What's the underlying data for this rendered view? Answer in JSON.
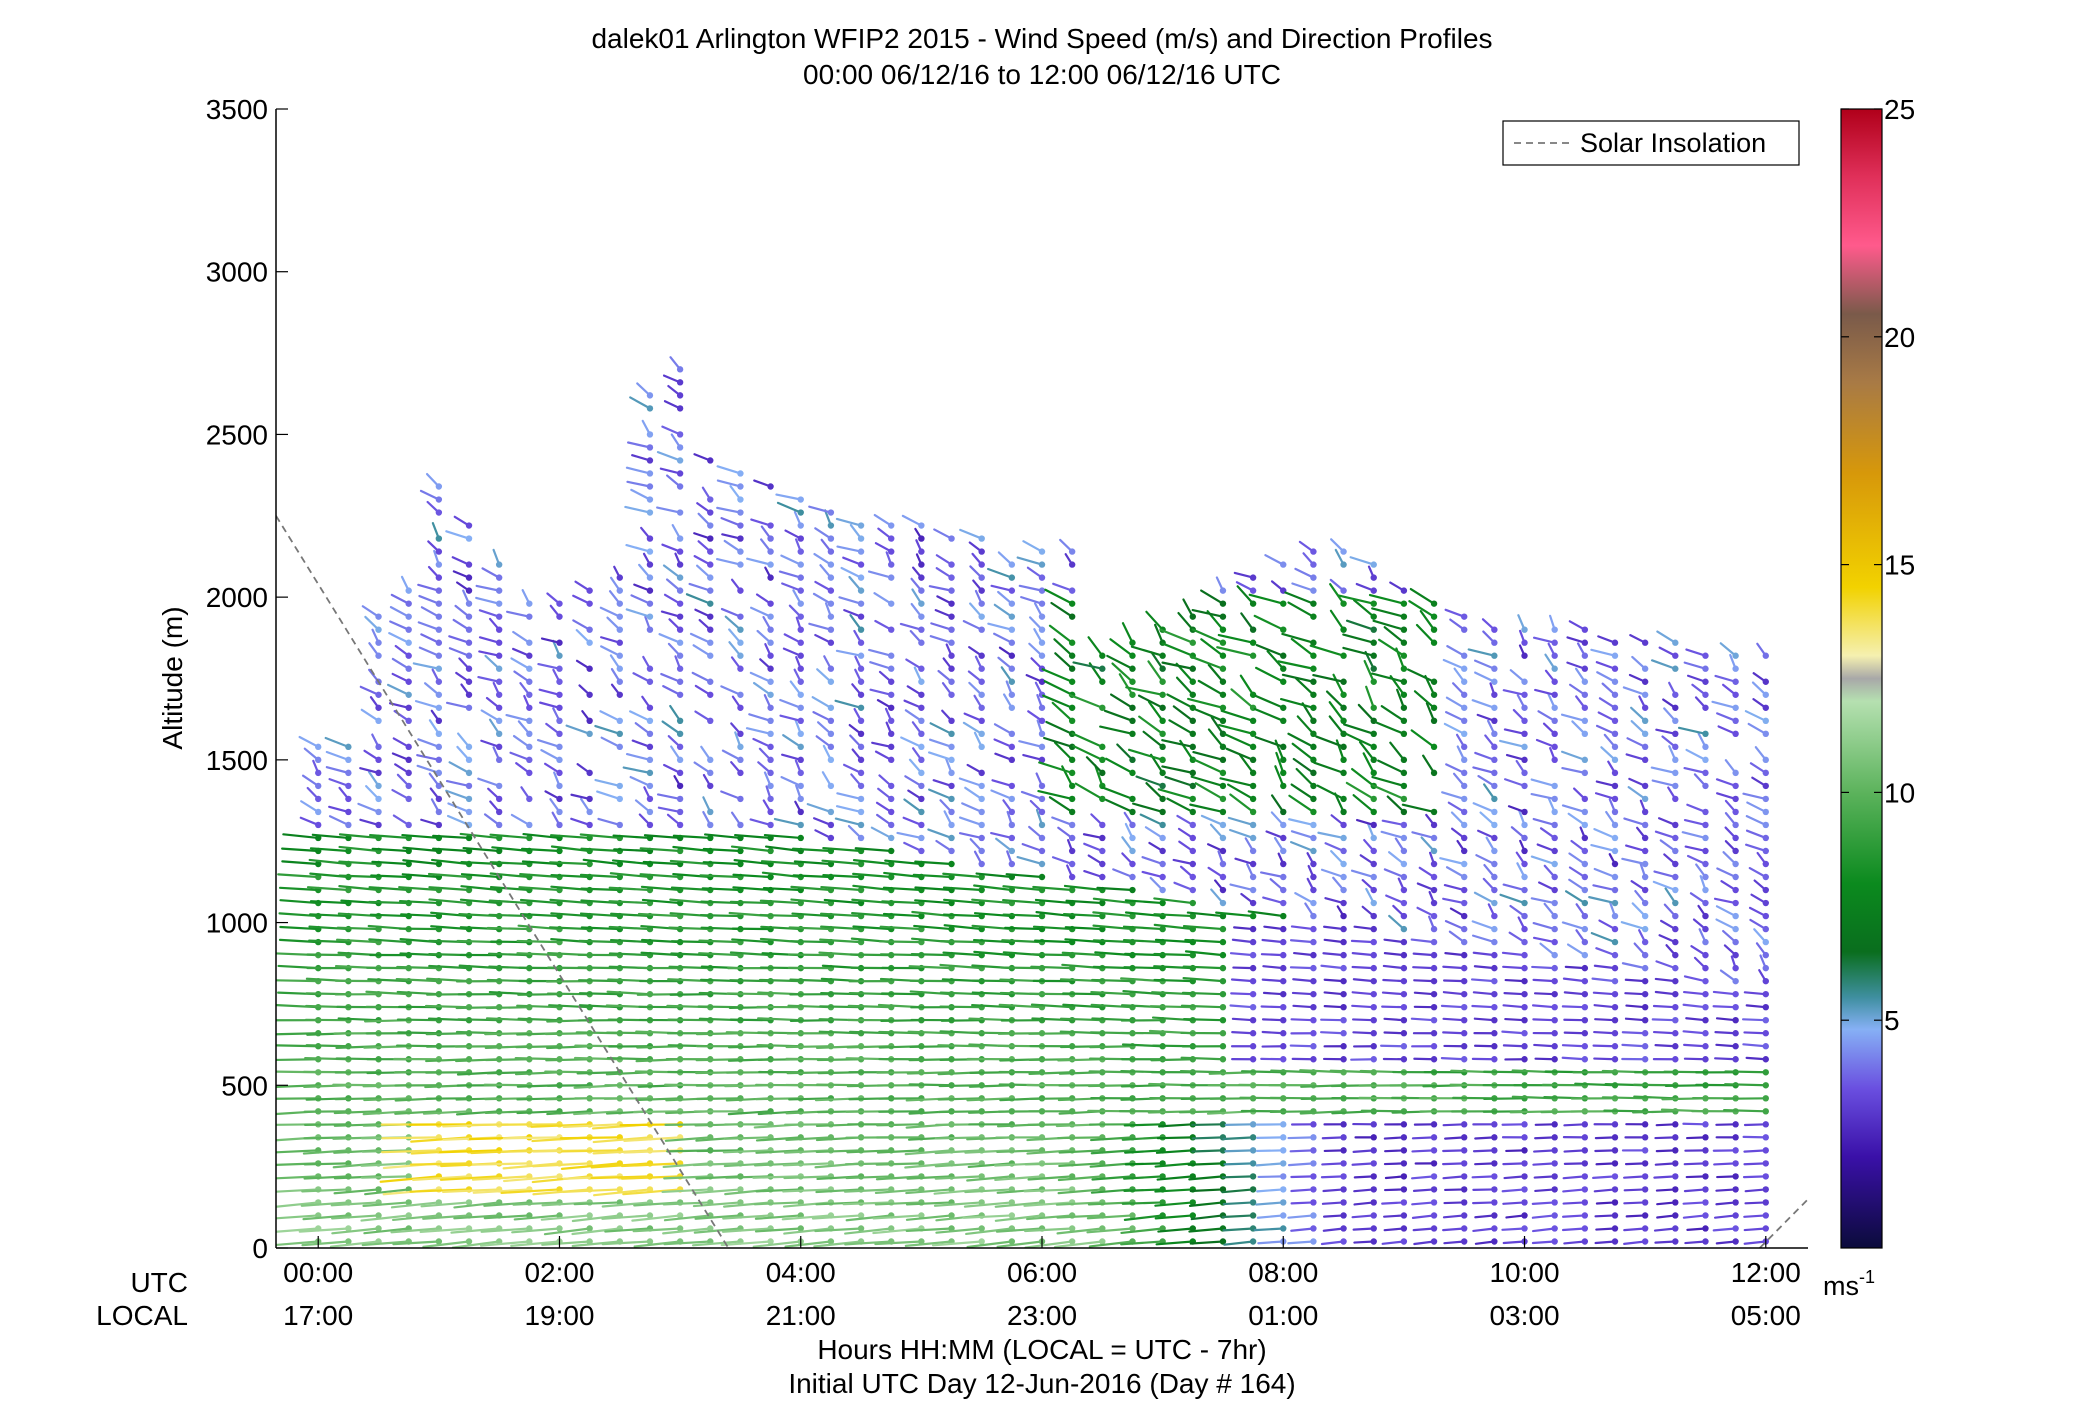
{
  "chart_data": {
    "type": "wind-barb profile (altitude vs time, colored by speed)",
    "title_line1": "dalek01 Arlington WFIP2 2015 - Wind Speed (m/s) and Direction Profiles",
    "title_line2": "00:00 06/12/16 to 12:00 06/12/16  UTC",
    "ylabel": "Altitude (m)",
    "ylim": [
      0,
      3500
    ],
    "yticks": [
      "0",
      "500",
      "1000",
      "1500",
      "2000",
      "2500",
      "3000",
      "3500"
    ],
    "ytick_values": [
      0,
      500,
      1000,
      1500,
      2000,
      2500,
      3000,
      3500
    ],
    "xlim_hours": [
      -0.35,
      12.35
    ],
    "utc_label": "UTC",
    "local_label": "LOCAL",
    "utc_ticks": [
      "00:00",
      "02:00",
      "04:00",
      "06:00",
      "08:00",
      "10:00",
      "12:00"
    ],
    "local_ticks": [
      "17:00",
      "19:00",
      "21:00",
      "23:00",
      "01:00",
      "03:00",
      "05:00"
    ],
    "tick_hours": [
      0,
      2,
      4,
      6,
      8,
      10,
      12
    ],
    "xlabel_line1": "Hours HH:MM  (LOCAL = UTC - 7hr)",
    "xlabel_line2": "Initial UTC Day 12-Jun-2016 (Day # 164)",
    "legend_entry": "Solar Insolation",
    "legend_placement": "top-right",
    "colorbar": {
      "range": [
        0,
        25
      ],
      "ticks": [
        "5",
        "10",
        "15",
        "20",
        "25"
      ],
      "tick_values": [
        5,
        10,
        15,
        20,
        25
      ],
      "unit_base": "ms",
      "unit_exp": "-1",
      "stops": [
        {
          "v": 0,
          "c": "#0b0b3b"
        },
        {
          "v": 2,
          "c": "#3a10a8"
        },
        {
          "v": 3.5,
          "c": "#6a4fe0"
        },
        {
          "v": 4.8,
          "c": "#86b0f5"
        },
        {
          "v": 5.5,
          "c": "#3f8fa0"
        },
        {
          "v": 6.5,
          "c": "#0a6e1e"
        },
        {
          "v": 8,
          "c": "#0b8a1e"
        },
        {
          "v": 10,
          "c": "#5cb35c"
        },
        {
          "v": 12,
          "c": "#b5e0b0"
        },
        {
          "v": 12.5,
          "c": "#a8a8a8"
        },
        {
          "v": 13,
          "c": "#f5f0b0"
        },
        {
          "v": 14.5,
          "c": "#f2d200"
        },
        {
          "v": 17,
          "c": "#d7980a"
        },
        {
          "v": 19,
          "c": "#a87a45"
        },
        {
          "v": 20.5,
          "c": "#7a5a4a"
        },
        {
          "v": 22,
          "c": "#ff5a8c"
        },
        {
          "v": 23.5,
          "c": "#e0305a"
        },
        {
          "v": 25,
          "c": "#b0001a"
        }
      ]
    },
    "solar_insolation_line": {
      "style": "dashed",
      "color": "#777777",
      "segments": [
        [
          [
            -0.35,
            2250
          ],
          [
            3.4,
            0
          ]
        ],
        [
          [
            11.95,
            0
          ],
          [
            12.35,
            150
          ]
        ]
      ]
    },
    "wind_field": {
      "time_start_hours": 0,
      "time_end_hours": 12,
      "time_step_hours": 0.25,
      "altitude_step_m": 40,
      "description": "Low-level westerly flow 6-14 m/s below ~1300 m (yellow jet 200-400 m near 01:00-03:00), upper flow 2-5 m/s northerly/northwesterly with calm purple region later at low levels; max height of profile varies by time"
    }
  }
}
